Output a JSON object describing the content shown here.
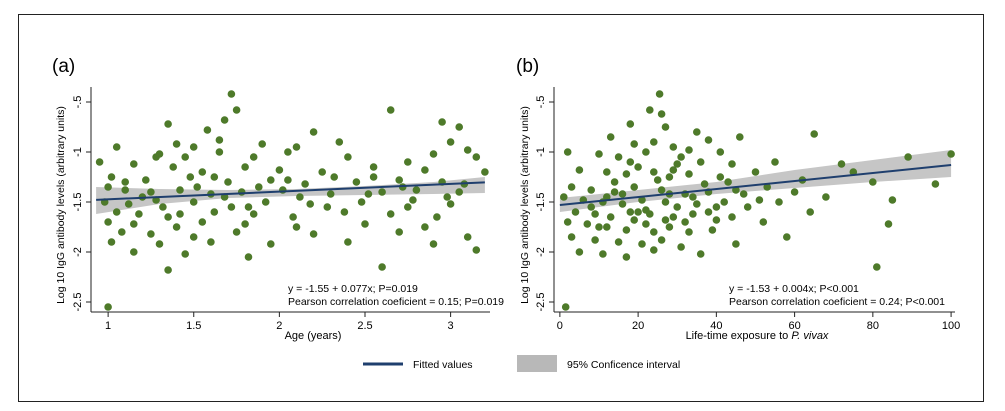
{
  "legend": {
    "fitted_label": "Fitted values",
    "ci_label": "95% Conficence interval"
  },
  "colors": {
    "points": "#4e7a2a",
    "line": "#1f3f6e",
    "ci_band": "#c6c6c6",
    "ci_band_legend": "#b8b8b8"
  },
  "chart_data": [
    {
      "type": "scatter",
      "panel_label": "(a)",
      "xlabel_prefix": "Age (years)",
      "xlabel_italic": "",
      "ylabel": "Log 10 IgG antibody levels (arbitrary units)",
      "xlim": [
        0.9,
        3.23
      ],
      "ylim": [
        -2.6,
        -0.35
      ],
      "xticks": [
        1,
        1.5,
        2,
        2.5,
        3
      ],
      "xtick_labels": [
        "1",
        "1.5",
        "2",
        "2.5",
        "3"
      ],
      "yticks": [
        -2.5,
        -2,
        -1.5,
        -1,
        -0.5
      ],
      "ytick_labels": [
        "-2.5",
        "-2",
        "-1.5",
        "-1",
        "-.5"
      ],
      "fit": {
        "intercept": -1.55,
        "slope": 0.077
      },
      "ci_band": {
        "x": [
          0.93,
          1.3,
          1.7,
          2.1,
          2.5,
          2.9,
          3.2
        ],
        "lower": [
          -1.62,
          -1.52,
          -1.46,
          -1.44,
          -1.43,
          -1.42,
          -1.41
        ],
        "upper": [
          -1.35,
          -1.37,
          -1.38,
          -1.37,
          -1.34,
          -1.3,
          -1.25
        ]
      },
      "annotation_line1": "y = -1.55 + 0.077x; P=0.019",
      "annotation_line2": "Pearson correlation coeficient = 0.15; P=0.019",
      "points": [
        [
          1.0,
          -2.55
        ],
        [
          1.72,
          -0.42
        ],
        [
          1.75,
          -0.58
        ],
        [
          2.65,
          -0.58
        ],
        [
          1.68,
          -0.68
        ],
        [
          1.35,
          -0.72
        ],
        [
          1.58,
          -0.78
        ],
        [
          2.95,
          -0.7
        ],
        [
          3.05,
          -0.75
        ],
        [
          2.2,
          -0.8
        ],
        [
          1.4,
          -0.92
        ],
        [
          1.05,
          -0.95
        ],
        [
          1.5,
          -0.95
        ],
        [
          1.9,
          -0.92
        ],
        [
          2.35,
          -0.9
        ],
        [
          3.1,
          -0.98
        ],
        [
          1.3,
          -1.02
        ],
        [
          1.45,
          -1.05
        ],
        [
          1.65,
          -1.0
        ],
        [
          1.85,
          -1.05
        ],
        [
          2.05,
          -1.0
        ],
        [
          2.4,
          -1.05
        ],
        [
          2.9,
          -1.02
        ],
        [
          3.15,
          -1.05
        ],
        [
          0.95,
          -1.1
        ],
        [
          1.15,
          -1.12
        ],
        [
          1.38,
          -1.15
        ],
        [
          1.55,
          -1.2
        ],
        [
          1.8,
          -1.15
        ],
        [
          2.0,
          -1.18
        ],
        [
          2.25,
          -1.2
        ],
        [
          2.55,
          -1.15
        ],
        [
          2.85,
          -1.18
        ],
        [
          3.2,
          -1.2
        ],
        [
          1.02,
          -1.25
        ],
        [
          1.22,
          -1.28
        ],
        [
          1.48,
          -1.25
        ],
        [
          1.7,
          -1.3
        ],
        [
          1.95,
          -1.28
        ],
        [
          2.15,
          -1.32
        ],
        [
          2.45,
          -1.3
        ],
        [
          2.7,
          -1.28
        ],
        [
          2.95,
          -1.3
        ],
        [
          1.0,
          -1.35
        ],
        [
          1.1,
          -1.38
        ],
        [
          1.25,
          -1.4
        ],
        [
          1.42,
          -1.38
        ],
        [
          1.6,
          -1.42
        ],
        [
          1.78,
          -1.4
        ],
        [
          2.02,
          -1.38
        ],
        [
          2.3,
          -1.42
        ],
        [
          2.6,
          -1.4
        ],
        [
          2.8,
          -1.38
        ],
        [
          3.05,
          -1.4
        ],
        [
          0.98,
          -1.5
        ],
        [
          1.12,
          -1.52
        ],
        [
          1.28,
          -1.48
        ],
        [
          1.5,
          -1.5
        ],
        [
          1.72,
          -1.55
        ],
        [
          1.92,
          -1.5
        ],
        [
          2.18,
          -1.52
        ],
        [
          2.48,
          -1.5
        ],
        [
          2.75,
          -1.55
        ],
        [
          3.0,
          -1.52
        ],
        [
          1.05,
          -1.6
        ],
        [
          1.18,
          -1.62
        ],
        [
          1.35,
          -1.65
        ],
        [
          1.62,
          -1.6
        ],
        [
          1.85,
          -1.62
        ],
        [
          2.08,
          -1.65
        ],
        [
          2.38,
          -1.6
        ],
        [
          2.65,
          -1.62
        ],
        [
          2.92,
          -1.65
        ],
        [
          1.0,
          -1.7
        ],
        [
          1.15,
          -1.72
        ],
        [
          1.4,
          -1.75
        ],
        [
          1.55,
          -1.7
        ],
        [
          1.8,
          -1.72
        ],
        [
          2.1,
          -1.75
        ],
        [
          2.5,
          -1.72
        ],
        [
          2.85,
          -1.75
        ],
        [
          1.08,
          -1.8
        ],
        [
          1.25,
          -1.82
        ],
        [
          1.5,
          -1.85
        ],
        [
          1.75,
          -1.8
        ],
        [
          2.2,
          -1.82
        ],
        [
          2.7,
          -1.8
        ],
        [
          3.1,
          -1.85
        ],
        [
          1.02,
          -1.9
        ],
        [
          1.3,
          -1.92
        ],
        [
          1.6,
          -1.9
        ],
        [
          1.95,
          -1.92
        ],
        [
          2.4,
          -1.9
        ],
        [
          2.9,
          -1.92
        ],
        [
          1.15,
          -2.0
        ],
        [
          1.45,
          -2.02
        ],
        [
          1.82,
          -2.05
        ],
        [
          2.6,
          -2.15
        ],
        [
          1.35,
          -2.18
        ],
        [
          3.15,
          -1.98
        ],
        [
          1.1,
          -1.3
        ],
        [
          1.32,
          -1.55
        ],
        [
          1.52,
          -1.35
        ],
        [
          1.68,
          -1.45
        ],
        [
          1.88,
          -1.35
        ],
        [
          2.12,
          -1.45
        ],
        [
          2.32,
          -1.25
        ],
        [
          2.52,
          -1.42
        ],
        [
          2.72,
          -1.35
        ],
        [
          2.98,
          -1.45
        ],
        [
          1.2,
          -1.45
        ],
        [
          1.42,
          -1.62
        ],
        [
          1.62,
          -1.25
        ],
        [
          1.82,
          -1.55
        ],
        [
          2.05,
          -1.28
        ],
        [
          2.28,
          -1.55
        ],
        [
          2.55,
          -1.25
        ],
        [
          2.78,
          -1.48
        ],
        [
          3.08,
          -1.32
        ],
        [
          1.28,
          -1.05
        ],
        [
          1.65,
          -0.88
        ],
        [
          2.1,
          -0.95
        ],
        [
          2.75,
          -1.1
        ],
        [
          3.0,
          -0.9
        ]
      ]
    },
    {
      "type": "scatter",
      "panel_label": "(b)",
      "xlabel_prefix": "Life-time exposure to ",
      "xlabel_italic": "P. vivax",
      "ylabel": "Log 10 IgG antibody levels (arbitrary units)",
      "xlim": [
        -1.5,
        101
      ],
      "ylim": [
        -2.6,
        -0.35
      ],
      "xticks": [
        0,
        20,
        40,
        60,
        80,
        100
      ],
      "xtick_labels": [
        "0",
        "20",
        "40",
        "60",
        "80",
        "100"
      ],
      "yticks": [
        -2.5,
        -2,
        -1.5,
        -1,
        -0.5
      ],
      "ytick_labels": [
        "-2.5",
        "-2",
        "-1.5",
        "-1",
        "-.5"
      ],
      "fit": {
        "intercept": -1.53,
        "slope": 0.004
      },
      "ci_band": {
        "x": [
          0,
          20,
          40,
          60,
          80,
          100
        ],
        "lower": [
          -1.6,
          -1.5,
          -1.42,
          -1.36,
          -1.3,
          -1.25
        ],
        "upper": [
          -1.46,
          -1.38,
          -1.3,
          -1.18,
          -1.08,
          -0.98
        ]
      },
      "annotation_line1": "y = -1.53 + 0.004x; P<0.001",
      "annotation_line2": "Pearson correlation coeficient = 0.24; P<0.001",
      "points": [
        [
          1.5,
          -2.55
        ],
        [
          25.5,
          -0.42
        ],
        [
          23,
          -0.58
        ],
        [
          26,
          -0.62
        ],
        [
          18,
          -0.72
        ],
        [
          27,
          -0.75
        ],
        [
          35,
          -0.8
        ],
        [
          13,
          -0.85
        ],
        [
          19,
          -0.92
        ],
        [
          29,
          -0.95
        ],
        [
          38,
          -0.88
        ],
        [
          65,
          -0.82
        ],
        [
          46,
          -0.85
        ],
        [
          2,
          -1.0
        ],
        [
          10,
          -1.02
        ],
        [
          15,
          -1.05
        ],
        [
          22,
          -1.0
        ],
        [
          31,
          -1.05
        ],
        [
          36,
          -1.1
        ],
        [
          44,
          -1.12
        ],
        [
          55,
          -1.1
        ],
        [
          72,
          -1.12
        ],
        [
          89,
          -1.05
        ],
        [
          100,
          -1.02
        ],
        [
          5,
          -1.18
        ],
        [
          12,
          -1.2
        ],
        [
          17,
          -1.22
        ],
        [
          24,
          -1.2
        ],
        [
          28,
          -1.25
        ],
        [
          33,
          -1.22
        ],
        [
          41,
          -1.25
        ],
        [
          50,
          -1.2
        ],
        [
          62,
          -1.28
        ],
        [
          80,
          -1.3
        ],
        [
          96,
          -1.32
        ],
        [
          3,
          -1.35
        ],
        [
          8,
          -1.38
        ],
        [
          14,
          -1.4
        ],
        [
          19,
          -1.35
        ],
        [
          26,
          -1.38
        ],
        [
          32,
          -1.42
        ],
        [
          38,
          -1.4
        ],
        [
          45,
          -1.38
        ],
        [
          53,
          -1.35
        ],
        [
          68,
          -1.45
        ],
        [
          6,
          -1.48
        ],
        [
          11,
          -1.5
        ],
        [
          16,
          -1.52
        ],
        [
          21,
          -1.48
        ],
        [
          27,
          -1.5
        ],
        [
          30,
          -1.55
        ],
        [
          35,
          -1.52
        ],
        [
          42,
          -1.5
        ],
        [
          48,
          -1.55
        ],
        [
          64,
          -1.6
        ],
        [
          4,
          -1.6
        ],
        [
          9,
          -1.62
        ],
        [
          13,
          -1.65
        ],
        [
          18,
          -1.6
        ],
        [
          23,
          -1.62
        ],
        [
          29,
          -1.65
        ],
        [
          34,
          -1.62
        ],
        [
          40,
          -1.68
        ],
        [
          52,
          -1.7
        ],
        [
          84,
          -1.72
        ],
        [
          7,
          -1.72
        ],
        [
          12,
          -1.75
        ],
        [
          17,
          -1.78
        ],
        [
          22,
          -1.72
        ],
        [
          28,
          -1.75
        ],
        [
          33,
          -1.8
        ],
        [
          39,
          -1.78
        ],
        [
          58,
          -1.85
        ],
        [
          3,
          -1.85
        ],
        [
          9,
          -1.88
        ],
        [
          15,
          -1.9
        ],
        [
          21,
          -1.92
        ],
        [
          26,
          -1.88
        ],
        [
          31,
          -1.95
        ],
        [
          45,
          -1.92
        ],
        [
          5,
          -2.0
        ],
        [
          11,
          -2.02
        ],
        [
          17,
          -2.05
        ],
        [
          24,
          -1.98
        ],
        [
          36,
          -2.02
        ],
        [
          81,
          -2.15
        ],
        [
          1,
          -1.45
        ],
        [
          14,
          -1.3
        ],
        [
          20,
          -1.15
        ],
        [
          25,
          -1.28
        ],
        [
          30,
          -1.12
        ],
        [
          37,
          -1.32
        ],
        [
          43,
          -1.3
        ],
        [
          51,
          -1.48
        ],
        [
          60,
          -1.4
        ],
        [
          75,
          -1.2
        ],
        [
          85,
          -1.48
        ],
        [
          8,
          -1.55
        ],
        [
          16,
          -1.42
        ],
        [
          22,
          -1.58
        ],
        [
          28,
          -1.42
        ],
        [
          34,
          -1.45
        ],
        [
          40,
          -1.55
        ],
        [
          47,
          -1.42
        ],
        [
          56,
          -1.5
        ],
        [
          2,
          -1.7
        ],
        [
          10,
          -1.75
        ],
        [
          19,
          -1.68
        ],
        [
          24,
          -1.8
        ],
        [
          32,
          -1.7
        ],
        [
          38,
          -1.6
        ],
        [
          44,
          -1.65
        ],
        [
          18,
          -1.1
        ],
        [
          29,
          -1.18
        ],
        [
          41,
          -1.0
        ],
        [
          24,
          -0.9
        ],
        [
          33,
          -0.98
        ],
        [
          12,
          -1.45
        ],
        [
          20,
          -1.6
        ],
        [
          27,
          -1.68
        ]
      ]
    }
  ]
}
